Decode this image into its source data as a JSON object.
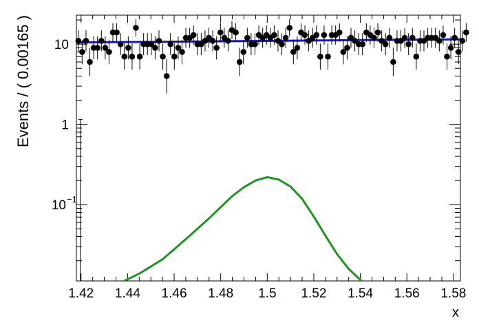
{
  "chart_data": {
    "type": "scatter",
    "title": "",
    "xlabel": "x",
    "ylabel": "Events / ( 0.00165 )",
    "xlim": [
      1.418,
      1.583
    ],
    "ylim": [
      0.0112,
      23
    ],
    "yscale": "log",
    "grid": false,
    "x_ticks": [
      "1.42",
      "1.44",
      "1.46",
      "1.48",
      "1.5",
      "1.52",
      "1.54",
      "1.56",
      "1.58"
    ],
    "y_ticks": [
      {
        "value": 10,
        "label": "10"
      },
      {
        "value": 1,
        "label": "1"
      },
      {
        "value": 0.1,
        "label": "10",
        "exponent": "−1"
      }
    ],
    "series": [
      {
        "kind": "data points with error bars",
        "color": "#000000",
        "x_start": 1.41883,
        "x_step": 0.00165,
        "y": [
          11,
          8,
          11,
          6,
          9,
          9,
          11,
          9,
          8,
          14,
          14,
          10,
          7,
          9,
          7,
          16,
          7,
          10,
          10,
          10,
          9,
          11,
          7,
          4,
          10,
          7,
          9,
          8,
          12,
          12,
          13,
          10,
          10,
          11,
          12,
          11,
          9,
          14,
          12,
          11,
          15,
          14,
          6,
          8,
          12,
          10,
          10,
          13,
          12,
          13,
          12,
          13,
          11,
          10,
          12,
          16,
          8,
          9,
          14,
          13,
          11,
          12,
          13,
          7,
          13,
          7,
          13,
          13,
          14,
          8,
          9,
          12,
          11,
          10,
          10,
          14,
          13,
          12,
          14,
          11,
          10,
          12,
          6,
          11,
          11,
          12,
          10,
          12,
          7,
          11,
          11,
          12,
          12,
          12,
          11,
          13,
          7,
          9,
          12,
          8,
          11,
          14
        ]
      },
      {
        "kind": "fit curve",
        "color": "#1414ce",
        "x": [
          1.418,
          1.583
        ],
        "y": [
          10.5,
          11.5
        ]
      },
      {
        "kind": "signal curve",
        "color": "#209320",
        "x": [
          1.4385,
          1.445,
          1.455,
          1.465,
          1.475,
          1.485,
          1.49,
          1.495,
          1.5,
          1.505,
          1.51,
          1.515,
          1.52,
          1.525,
          1.53,
          1.535,
          1.5405
        ],
        "y": [
          0.0112,
          0.0138,
          0.0208,
          0.0371,
          0.0675,
          0.128,
          0.165,
          0.2,
          0.22,
          0.205,
          0.168,
          0.118,
          0.071,
          0.041,
          0.0242,
          0.0158,
          0.0112
        ]
      }
    ]
  }
}
